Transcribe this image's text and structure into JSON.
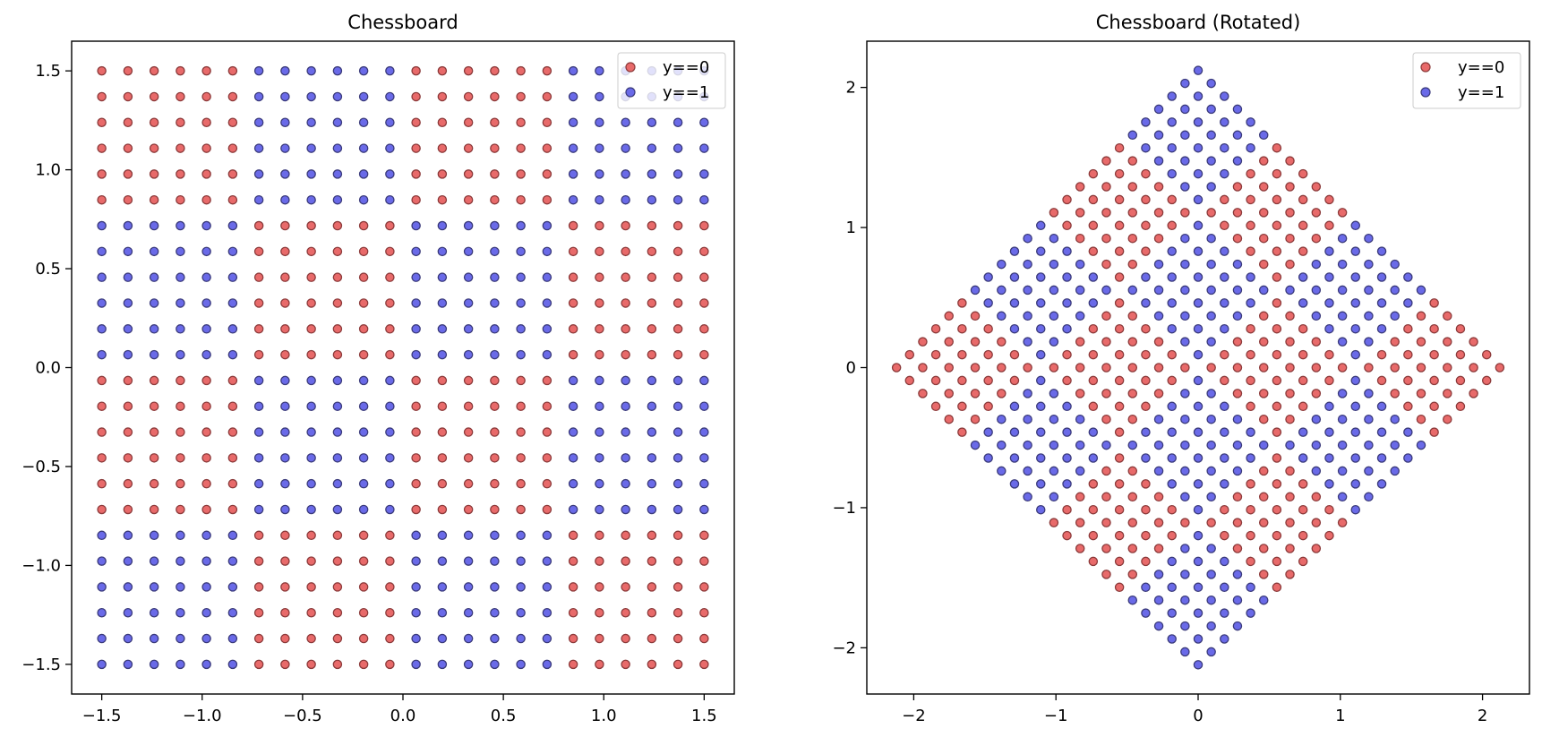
{
  "chart_data": [
    {
      "type": "scatter",
      "title": "Chessboard",
      "xlabel": "",
      "ylabel": "",
      "xlim": [
        -1.65,
        1.65
      ],
      "ylim": [
        -1.65,
        1.65
      ],
      "xticks": [
        -1.5,
        -1.0,
        -0.5,
        0.0,
        0.5,
        1.0,
        1.5
      ],
      "xtick_labels": [
        "−1.5",
        "−1.0",
        "−0.5",
        "0.0",
        "0.5",
        "1.0",
        "1.5"
      ],
      "yticks": [
        -1.5,
        -1.0,
        -0.5,
        0.0,
        0.5,
        1.0,
        1.5
      ],
      "ytick_labels": [
        "−1.5",
        "−1.0",
        "−0.5",
        "0.0",
        "0.5",
        "1.0",
        "1.5"
      ],
      "grid": false,
      "legend_position": "top-right",
      "grid_points": {
        "range": [
          -1.5,
          1.5
        ],
        "count": 24,
        "block_size": 6,
        "rotation_deg": 0,
        "rule": "class 0 when (floor(i/6) + floor(j/6)) is odd"
      },
      "series": [
        {
          "name": "y==0",
          "color": "#e86a6a",
          "edge_color": "#8b3a3a"
        },
        {
          "name": "y==1",
          "color": "#6a6ae8",
          "edge_color": "#3a3a7a"
        }
      ]
    },
    {
      "type": "scatter",
      "title": "Chessboard (Rotated)",
      "xlabel": "",
      "ylabel": "",
      "xlim": [
        -2.33,
        2.33
      ],
      "ylim": [
        -2.33,
        2.33
      ],
      "xticks": [
        -2,
        -1,
        0,
        1,
        2
      ],
      "xtick_labels": [
        "−2",
        "−1",
        "0",
        "1",
        "2"
      ],
      "yticks": [
        -2,
        -1,
        0,
        1,
        2
      ],
      "ytick_labels": [
        "−2",
        "−1",
        "0",
        "1",
        "2"
      ],
      "grid": false,
      "legend_position": "top-right",
      "grid_points": {
        "range": [
          -1.5,
          1.5
        ],
        "count": 24,
        "block_size": 6,
        "rotation_deg": 45,
        "rule": "class 0 when (floor(i/6) + floor(j/6)) is odd"
      },
      "series": [
        {
          "name": "y==0",
          "color": "#e86a6a",
          "edge_color": "#8b3a3a"
        },
        {
          "name": "y==1",
          "color": "#6a6ae8",
          "edge_color": "#3a3a7a"
        }
      ]
    }
  ]
}
